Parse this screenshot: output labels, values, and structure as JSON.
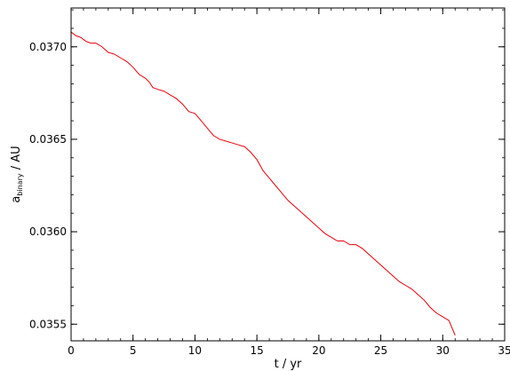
{
  "chart_data": {
    "type": "line",
    "title": "",
    "xlabel": "t / yr",
    "ylabel_main": "a",
    "ylabel_sub": "binary",
    "ylabel_unit": " / AU",
    "xlim": [
      0,
      35
    ],
    "ylim": [
      0.03541,
      0.03721
    ],
    "xticks": [
      0,
      5,
      10,
      15,
      20,
      25,
      30,
      35
    ],
    "xtick_labels": [
      "0",
      "5",
      "10",
      "15",
      "20",
      "25",
      "30",
      "35"
    ],
    "yticks": [
      0.0355,
      0.036,
      0.0365,
      0.037
    ],
    "ytick_labels": [
      "0.0355",
      "0.0360",
      "0.0365",
      "0.0370"
    ],
    "minor_x_step": 1,
    "minor_y_step": 0.0001,
    "grid": false,
    "legend": "none",
    "line_color": "#e8000b",
    "series": [
      {
        "x": [
          0,
          0.4,
          0.8,
          1.2,
          1.6,
          2.0,
          2.5,
          3.0,
          3.5,
          4.0,
          4.5,
          5.0,
          5.5,
          6.0,
          6.3,
          6.6,
          7.0,
          7.5,
          8.0,
          8.5,
          9.0,
          9.5,
          10.0,
          10.5,
          11.0,
          11.5,
          12.0,
          12.5,
          13.0,
          13.5,
          14.0,
          14.5,
          15.0,
          15.5,
          16.0,
          16.5,
          17.0,
          17.5,
          18.0,
          18.5,
          19.0,
          19.5,
          20.0,
          20.5,
          21.0,
          21.5,
          22.0,
          22.5,
          23.0,
          23.5,
          24.0,
          24.5,
          25.0,
          25.5,
          26.0,
          26.5,
          27.0,
          27.5,
          28.0,
          28.5,
          29.0,
          29.5,
          30.0,
          30.5,
          31.0
        ],
        "y": [
          0.03708,
          0.03706,
          0.03705,
          0.03703,
          0.03702,
          0.03702,
          0.037,
          0.03697,
          0.03696,
          0.03694,
          0.03692,
          0.03689,
          0.03685,
          0.03683,
          0.03681,
          0.03678,
          0.03677,
          0.03676,
          0.03674,
          0.03672,
          0.03669,
          0.03665,
          0.03664,
          0.0366,
          0.03656,
          0.03652,
          0.0365,
          0.03649,
          0.03648,
          0.03647,
          0.03646,
          0.03643,
          0.03639,
          0.03633,
          0.03629,
          0.03625,
          0.03621,
          0.03617,
          0.03614,
          0.03611,
          0.03608,
          0.03605,
          0.03602,
          0.03599,
          0.03597,
          0.03595,
          0.03595,
          0.03593,
          0.03593,
          0.03591,
          0.03588,
          0.03585,
          0.03582,
          0.03579,
          0.03576,
          0.03573,
          0.03571,
          0.03569,
          0.03566,
          0.03563,
          0.03559,
          0.03556,
          0.03554,
          0.03552,
          0.03544
        ]
      }
    ]
  }
}
